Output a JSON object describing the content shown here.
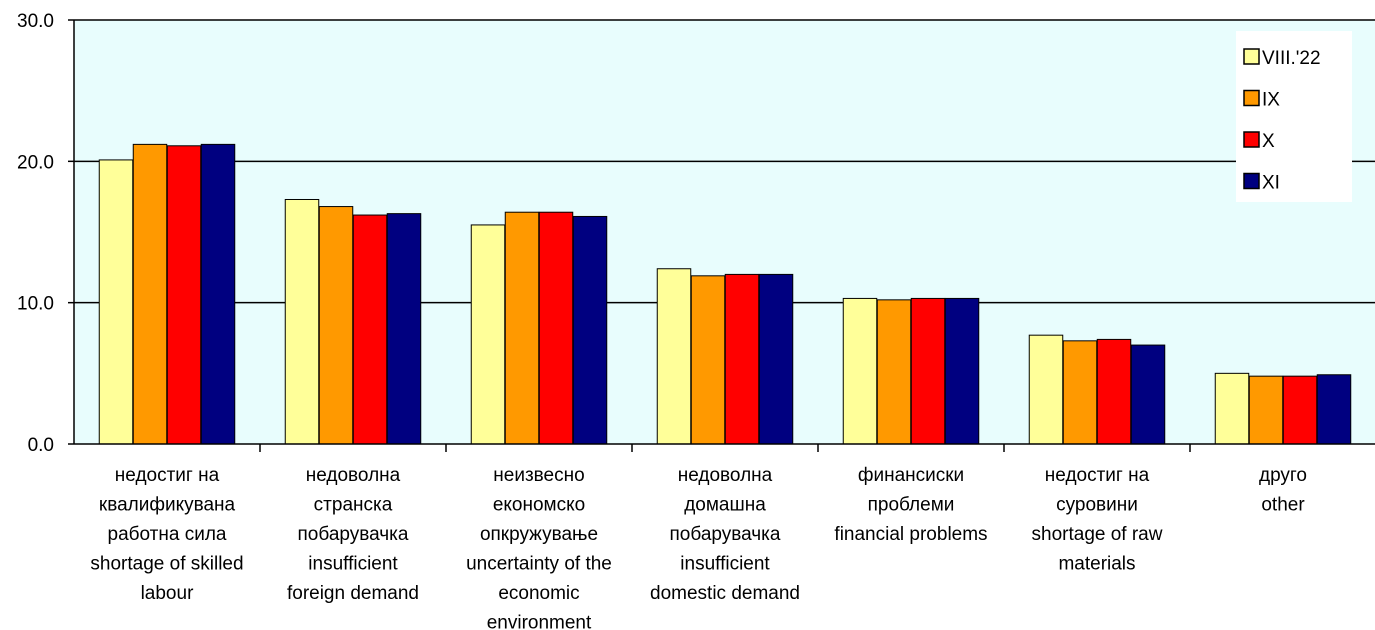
{
  "chart_data": {
    "type": "bar",
    "categories": [
      [
        "недостиг на",
        "квалификувана",
        "работна сила",
        "shortage of skilled",
        "labour"
      ],
      [
        "недоволна",
        "странска",
        "побарувачка",
        "insufficient",
        "foreign demand"
      ],
      [
        "неизвесно",
        "економско",
        "опкружување",
        "uncertainty of the",
        "economic",
        "environment"
      ],
      [
        "недоволна",
        "домашна",
        "побарувачка",
        "insufficient",
        "domestic demand"
      ],
      [
        "финансиски",
        "проблеми",
        "financial problems"
      ],
      [
        "недостиг на",
        "суровини",
        "shortage of raw",
        "materials"
      ],
      [
        "друго",
        "other"
      ]
    ],
    "series": [
      {
        "name": "VIII.'22",
        "color": "#FFFF99",
        "values": [
          20.1,
          17.3,
          15.5,
          12.4,
          10.3,
          7.7,
          5.0
        ]
      },
      {
        "name": "IX",
        "color": "#FF9900",
        "values": [
          21.2,
          16.8,
          16.4,
          11.9,
          10.2,
          7.3,
          4.8
        ]
      },
      {
        "name": "X",
        "color": "#FF0000",
        "values": [
          21.1,
          16.2,
          16.4,
          12.0,
          10.3,
          7.4,
          4.8
        ]
      },
      {
        "name": "XI",
        "color": "#000080",
        "values": [
          21.2,
          16.3,
          16.1,
          12.0,
          10.3,
          7.0,
          4.9
        ]
      }
    ],
    "ylim": [
      0,
      30
    ],
    "yticks": [
      "0.0",
      "10.0",
      "20.0",
      "30.0"
    ],
    "grid": true,
    "legend": "top-right",
    "plot_background": "#E8FDFD"
  }
}
